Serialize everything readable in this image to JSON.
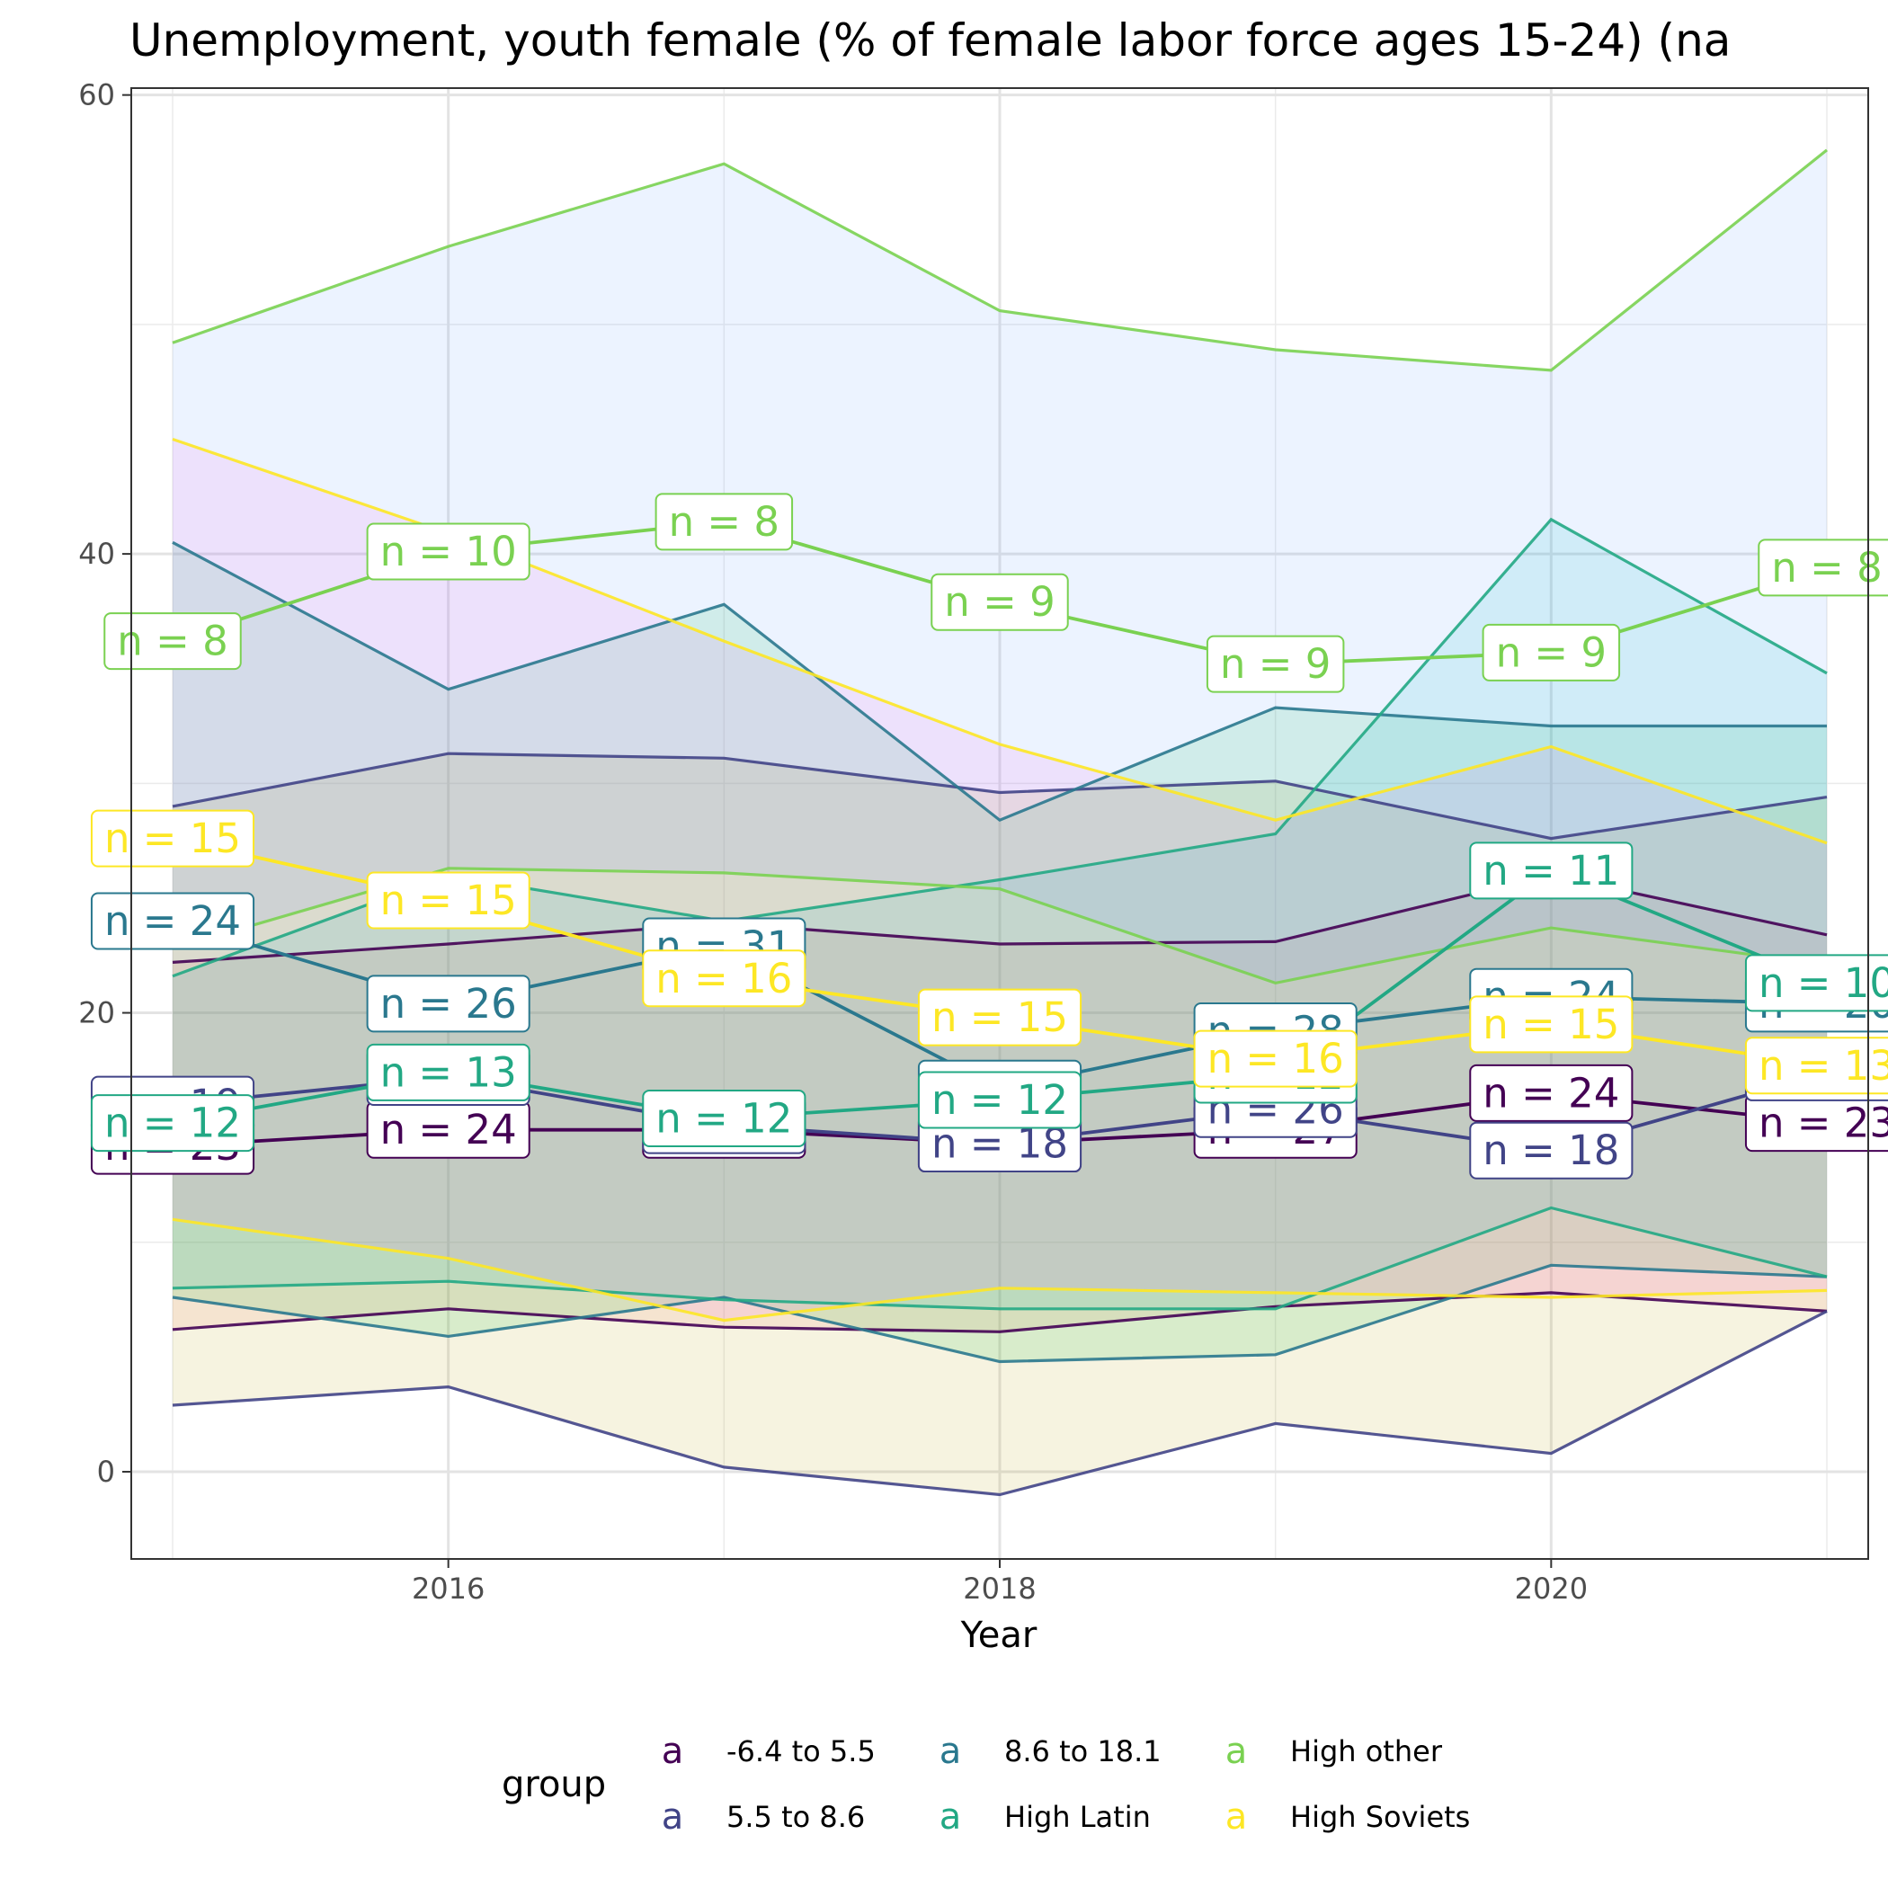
{
  "chart_data": {
    "type": "line",
    "title": "Unemployment, youth female (% of female labor force ages 15-24) (na",
    "xlabel": "Year",
    "ylabel": "",
    "xlim": [
      2014.85,
      2021.15
    ],
    "ylim": [
      -3.8,
      60.3
    ],
    "x_ticks": [
      2016,
      2018,
      2020
    ],
    "y_ticks": [
      0,
      20,
      40,
      60
    ],
    "grid": true,
    "legend": {
      "title": "group",
      "position": "bottom",
      "key_glyph": "a",
      "entries": [
        "-6.4 to 5.5",
        "5.5 to 8.6",
        "8.6 to 18.1",
        "High Latin",
        "High other",
        "High Soviets"
      ]
    },
    "x": [
      2015,
      2016,
      2017,
      2018,
      2019,
      2020,
      2021
    ],
    "series": [
      {
        "name": "-6.4 to 5.5",
        "color": "#440154",
        "fill": "#F8766D",
        "mean": [
          14.2,
          14.9,
          14.9,
          14.3,
          14.9,
          16.5,
          15.2
        ],
        "upper": [
          22.2,
          23.0,
          23.9,
          23.0,
          23.1,
          26.0,
          23.4
        ],
        "lower": [
          6.2,
          7.1,
          6.3,
          6.1,
          7.2,
          7.8,
          7.0
        ],
        "n": [
          23,
          24,
          24,
          25,
          27,
          24,
          23
        ]
      },
      {
        "name": "5.5 to 8.6",
        "color": "#414487",
        "fill": "#B79F00",
        "mean": [
          16.0,
          17.2,
          15.1,
          14.3,
          15.8,
          14.0,
          17.4
        ],
        "upper": [
          29.0,
          31.3,
          31.1,
          29.6,
          30.1,
          27.6,
          29.4
        ],
        "lower": [
          2.9,
          3.7,
          0.2,
          -1.0,
          2.1,
          0.8,
          7.0
        ],
        "n": [
          19,
          19,
          18,
          18,
          26,
          18,
          19
        ]
      },
      {
        "name": "8.6 to 18.1",
        "color": "#2A788E",
        "fill": "#00BA38",
        "mean": [
          24.0,
          20.4,
          22.9,
          16.7,
          19.2,
          20.7,
          20.4
        ],
        "upper": [
          40.5,
          34.1,
          37.8,
          28.4,
          33.3,
          32.5,
          32.5
        ],
        "lower": [
          7.6,
          5.9,
          7.6,
          4.8,
          5.1,
          9.0,
          8.5
        ],
        "n": [
          24,
          26,
          31,
          28,
          28,
          24,
          20
        ]
      },
      {
        "name": "High Latin",
        "color": "#22A884",
        "fill": "#00BFC4",
        "mean": [
          15.2,
          17.4,
          15.4,
          16.2,
          17.3,
          26.2,
          21.3
        ],
        "upper": [
          21.6,
          26.0,
          24.0,
          25.8,
          27.8,
          41.5,
          34.8
        ],
        "lower": [
          8.0,
          8.3,
          7.5,
          7.1,
          7.1,
          11.5,
          8.5
        ],
        "n": [
          12,
          13,
          12,
          12,
          12,
          11,
          10
        ]
      },
      {
        "name": "High other",
        "color": "#7AD151",
        "fill": "#619CFF",
        "mean": [
          36.2,
          40.1,
          41.4,
          37.9,
          35.2,
          35.7,
          39.4
        ],
        "upper": [
          49.2,
          53.4,
          57.0,
          50.6,
          48.9,
          48.0,
          57.6
        ],
        "lower": [
          22.8,
          26.3,
          26.1,
          25.4,
          21.3,
          23.7,
          22.1
        ],
        "n": [
          8,
          10,
          8,
          9,
          9,
          9,
          8
        ]
      },
      {
        "name": "High Soviets",
        "color": "#FDE725",
        "fill": "#F564E3",
        "mean": [
          27.6,
          24.9,
          21.5,
          19.8,
          18.0,
          19.5,
          17.7
        ],
        "upper": [
          45.0,
          40.9,
          36.2,
          31.7,
          28.4,
          31.6,
          27.4
        ],
        "lower": [
          11.0,
          9.3,
          6.6,
          8.0,
          7.8,
          7.6,
          7.9
        ],
        "n": [
          15,
          15,
          16,
          15,
          16,
          15,
          13
        ]
      }
    ]
  }
}
